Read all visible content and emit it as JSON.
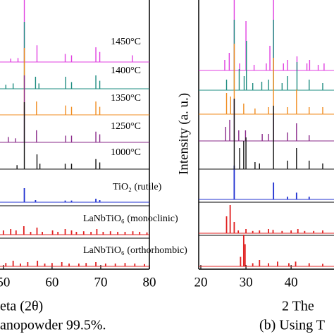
{
  "chart_data": [
    {
      "type": "spectrum",
      "xlim": [
        49.3,
        80
      ],
      "xticks": [
        50,
        60,
        70,
        80
      ],
      "xlabel": "eta (2θ)",
      "caption": "anopowder 99.5%.",
      "series": [
        {
          "name": "1450°C",
          "color": "#e040e0",
          "x": [
            51.5,
            53,
            54.3,
            56.9,
            62.7,
            64.0,
            69.0,
            69.8,
            76.5
          ],
          "values": [
            5,
            6,
            100,
            25,
            12,
            10,
            22,
            15,
            10
          ]
        },
        {
          "name": "1400°C",
          "color": "#1e8c80",
          "x": [
            50.5,
            52,
            54.3,
            56.6,
            57.3,
            62.8,
            64,
            69,
            69.8
          ],
          "values": [
            6,
            8,
            100,
            18,
            8,
            18,
            10,
            20,
            12
          ]
        },
        {
          "name": "1350°C",
          "color": "#f08c20",
          "x": [
            54.3,
            56.8,
            62.8,
            64,
            69,
            69.8
          ],
          "values": [
            100,
            20,
            14,
            12,
            20,
            12
          ]
        },
        {
          "name": "1250°C",
          "color": "#8a2a8a",
          "x": [
            51,
            52.5,
            54.3,
            56.8,
            62.8,
            64,
            69,
            69.8
          ],
          "values": [
            8,
            6,
            100,
            18,
            10,
            10,
            16,
            12
          ]
        },
        {
          "name": "1000°C",
          "color": "#111111",
          "x": [
            52.8,
            54.3,
            56.9,
            57.5,
            62.7,
            64,
            69,
            69.8
          ],
          "values": [
            6,
            100,
            22,
            8,
            8,
            8,
            15,
            10
          ]
        }
      ],
      "references": [
        {
          "name": "TiO₂ (rutile)",
          "color": "#1f2fd0",
          "x": [
            54.3,
            56.6,
            62.7,
            64.0,
            69.0,
            69.8
          ],
          "values": [
            100,
            15,
            12,
            12,
            25,
            15
          ]
        },
        {
          "name": "LaNbTiO₆ (monoclinic)",
          "color": "#e02020",
          "x": [
            50,
            51.5,
            52.6,
            54.2,
            55.6,
            56.9,
            58,
            60.1,
            61.2,
            62.7,
            64,
            65,
            66.5,
            68,
            69.2,
            70.5,
            72,
            73.5,
            75,
            76.6,
            78,
            79.5
          ],
          "values": [
            15,
            20,
            15,
            30,
            10,
            25,
            10,
            15,
            10,
            20,
            15,
            10,
            12,
            10,
            20,
            10,
            12,
            10,
            10,
            12,
            10,
            8
          ]
        },
        {
          "name": "LaNbTiO₆ (orthorhombic)",
          "color": "#e02020",
          "x": [
            50.5,
            52,
            53.5,
            55,
            57,
            58.5,
            60,
            62,
            63.5,
            65.5,
            67,
            69,
            71,
            73,
            75,
            77,
            79
          ],
          "values": [
            12,
            20,
            10,
            15,
            20,
            10,
            12,
            15,
            10,
            10,
            12,
            15,
            10,
            10,
            12,
            10,
            8
          ]
        }
      ]
    },
    {
      "type": "spectrum",
      "xlim": [
        20,
        49.5
      ],
      "xticks": [
        20,
        30,
        40
      ],
      "ylabel": "Intensity (a. u.)",
      "xlabel": "2 The",
      "caption": "(b) Using T",
      "series": [
        {
          "color": "#e040e0",
          "x": [
            25.3,
            26.3,
            27.4,
            28.6,
            30.0,
            31.8,
            34.5,
            35.3,
            36.1,
            38.3,
            39.2,
            41.3,
            43.5,
            44.1,
            46,
            47.3
          ],
          "values": [
            15,
            25,
            100,
            10,
            70,
            8,
            10,
            35,
            100,
            10,
            15,
            20,
            10,
            15,
            8,
            10
          ]
        },
        {
          "color": "#1e8c80",
          "x": [
            25.7,
            27.4,
            28.5,
            29.6,
            30.1,
            31.5,
            33.5,
            35.0,
            36.1,
            38,
            39.2,
            41.3,
            44,
            47
          ],
          "values": [
            15,
            100,
            30,
            20,
            70,
            10,
            12,
            15,
            100,
            10,
            20,
            40,
            15,
            10
          ]
        },
        {
          "color": "#f08c20",
          "x": [
            25.7,
            26.6,
            27.4,
            29.5,
            32,
            35,
            36.1,
            39.2,
            41.2,
            44,
            47
          ],
          "values": [
            30,
            25,
            100,
            15,
            8,
            10,
            80,
            10,
            35,
            10,
            10
          ]
        },
        {
          "color": "#8a2a8a",
          "x": [
            25.5,
            26.4,
            27.4,
            28.4,
            29.9,
            33.6,
            35,
            36.1,
            39.2,
            41.2,
            44
          ],
          "values": [
            20,
            30,
            60,
            15,
            15,
            10,
            10,
            40,
            12,
            25,
            8
          ]
        },
        {
          "color": "#111111",
          "x": [
            27.4,
            28.6,
            29.5,
            30,
            32,
            33,
            36.1,
            39.2,
            41.2,
            44,
            47
          ],
          "values": [
            100,
            30,
            40,
            45,
            10,
            8,
            90,
            12,
            30,
            12,
            8
          ]
        }
      ],
      "references": [
        {
          "color": "#1f2fd0",
          "x": [
            27.4,
            36.1,
            39.2,
            41.2,
            44
          ],
          "values": [
            100,
            50,
            8,
            20,
            8
          ]
        },
        {
          "color": "#e02020",
          "x": [
            25.7,
            26.5,
            27.4,
            28.3,
            30,
            31.5,
            33,
            35,
            36,
            38,
            40,
            41.5,
            43,
            45,
            47
          ],
          "values": [
            60,
            100,
            40,
            10,
            15,
            8,
            10,
            15,
            12,
            8,
            10,
            15,
            8,
            8,
            10
          ]
        },
        {
          "color": "#e02020",
          "x": [
            28.8,
            29.5,
            29.8,
            31.5,
            33,
            35,
            37,
            39.5,
            41,
            44,
            47
          ],
          "values": [
            30,
            100,
            70,
            10,
            20,
            10,
            15,
            10,
            15,
            10,
            8
          ]
        }
      ]
    }
  ]
}
